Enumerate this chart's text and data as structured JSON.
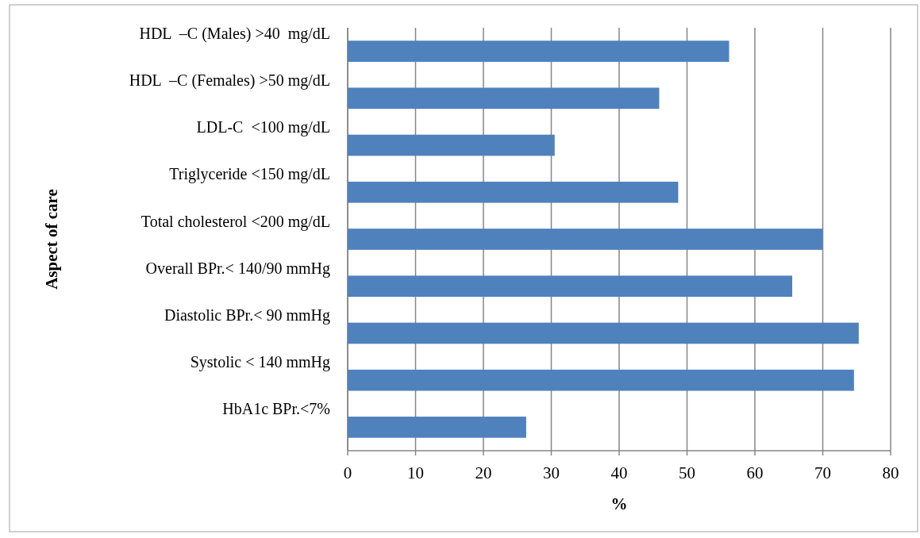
{
  "chart_data": {
    "type": "bar",
    "orientation": "horizontal",
    "ylabel": "Aspect of care",
    "xlabel": "%",
    "categories": [
      "HDL  –C (Males) >40  mg/dL",
      "HDL  –C (Females) >50 mg/dL",
      "LDL-C  <100 mg/dL",
      "Triglyceride <150 mg/dL",
      "Total cholesterol <200 mg/dL",
      "Overall BPr.< 140/90 mmHg",
      "Diastolic BPr.< 90 mmHg",
      "Systolic < 140 mmHg",
      "HbA1c BPr.<7%"
    ],
    "values": [
      56.2,
      45.9,
      30.5,
      48.7,
      70,
      65.5,
      75.3,
      74.6,
      26.3
    ],
    "color": "#4f81bd",
    "xlim": [
      0,
      80
    ],
    "xticks": [
      0,
      10,
      20,
      30,
      40,
      50,
      60,
      70,
      80
    ],
    "grid": "x"
  }
}
